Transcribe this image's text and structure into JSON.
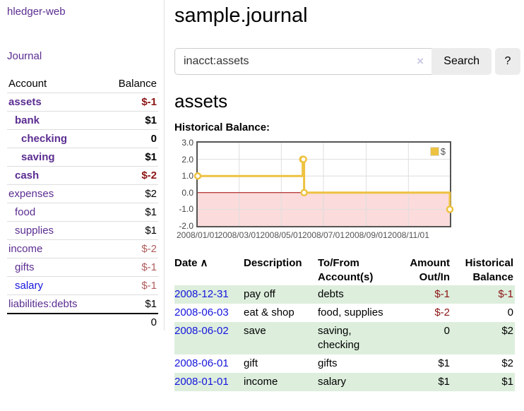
{
  "app": {
    "brand": "hledger-web"
  },
  "sidebar": {
    "journal_link": "Journal",
    "columns": {
      "account": "Account",
      "balance": "Balance"
    },
    "accounts": [
      {
        "name": "assets",
        "level": 1,
        "balance": "$-1",
        "bold": true,
        "balance_style": "neg-strong",
        "link_style": "purple"
      },
      {
        "name": "bank",
        "level": 2,
        "balance": "$1",
        "bold": true,
        "balance_style": "normal",
        "link_style": "purple"
      },
      {
        "name": "checking",
        "level": 3,
        "balance": "0",
        "bold": true,
        "balance_style": "normal",
        "link_style": "purple"
      },
      {
        "name": "saving",
        "level": 3,
        "balance": "$1",
        "bold": true,
        "balance_style": "normal",
        "link_style": "purple"
      },
      {
        "name": "cash",
        "level": 2,
        "balance": "$-2",
        "bold": true,
        "balance_style": "neg-strong",
        "link_style": "purple"
      },
      {
        "name": "expenses",
        "level": 1,
        "balance": "$2",
        "bold": false,
        "balance_style": "normal",
        "link_style": "purple"
      },
      {
        "name": "food",
        "level": 2,
        "balance": "$1",
        "bold": false,
        "balance_style": "normal",
        "link_style": "purple"
      },
      {
        "name": "supplies",
        "level": 2,
        "balance": "$1",
        "bold": false,
        "balance_style": "normal",
        "link_style": "purple"
      },
      {
        "name": "income",
        "level": 1,
        "balance": "$-2",
        "bold": false,
        "balance_style": "neg-soft",
        "link_style": "purple"
      },
      {
        "name": "gifts",
        "level": 2,
        "balance": "$-1",
        "bold": false,
        "balance_style": "neg-soft",
        "link_style": "purple"
      },
      {
        "name": "salary",
        "level": 2,
        "balance": "$-1",
        "bold": false,
        "balance_style": "neg-soft",
        "link_style": "blue"
      },
      {
        "name": "liabilities:debts",
        "level": 1,
        "balance": "$1",
        "bold": false,
        "balance_style": "normal",
        "link_style": "purple"
      }
    ],
    "total": "0"
  },
  "main": {
    "title": "sample.journal",
    "search": {
      "value": "inacct:assets",
      "clear_icon": "×",
      "search_label": "Search",
      "help_label": "?"
    },
    "account_heading": "assets",
    "register": {
      "columns": [
        {
          "label": "Date",
          "sort_icon": "∧",
          "align": "left",
          "sortable": true
        },
        {
          "label": "Description",
          "align": "left"
        },
        {
          "label": "To/From Account(s)",
          "align": "left"
        },
        {
          "label": "Amount Out/In",
          "align": "right"
        },
        {
          "label": "Historical Balance",
          "align": "right"
        }
      ],
      "rows": [
        {
          "date": "2008-12-31",
          "description": "pay off",
          "accounts": "debts",
          "amount": "$-1",
          "amount_style": "neg-strong",
          "balance": "$-1",
          "balance_style": "neg-strong"
        },
        {
          "date": "2008-06-03",
          "description": "eat & shop",
          "accounts": "food, supplies",
          "amount": "$-2",
          "amount_style": "neg-strong",
          "balance": "0",
          "balance_style": "normal"
        },
        {
          "date": "2008-06-02",
          "description": "save",
          "accounts": "saving, checking",
          "amount": "0",
          "amount_style": "normal",
          "balance": "$2",
          "balance_style": "normal"
        },
        {
          "date": "2008-06-01",
          "description": "gift",
          "accounts": "gifts",
          "amount": "$1",
          "amount_style": "normal",
          "balance": "$2",
          "balance_style": "normal"
        },
        {
          "date": "2008-01-01",
          "description": "income",
          "accounts": "salary",
          "amount": "$1",
          "amount_style": "normal",
          "balance": "$1",
          "balance_style": "normal"
        }
      ]
    }
  },
  "chart_data": {
    "type": "line",
    "step": true,
    "title": "Historical Balance:",
    "x_domain": [
      "2008-01-01",
      "2008-12-31"
    ],
    "ylim": [
      -2,
      3
    ],
    "x_ticks": [
      "2008/01/01",
      "2008/03/01",
      "2008/05/01",
      "2008/07/01",
      "2008/09/01",
      "2008/11/01"
    ],
    "y_ticks": [
      "3.0",
      "2.0",
      "1.0",
      "0.0",
      "-1.0",
      "-2.0"
    ],
    "series": [
      {
        "name": "$",
        "points": [
          [
            "2008-01-01",
            1
          ],
          [
            "2008-06-01",
            2
          ],
          [
            "2008-06-02",
            2
          ],
          [
            "2008-06-03",
            0
          ],
          [
            "2008-12-31",
            -1
          ]
        ]
      }
    ],
    "legend": {
      "label": "$",
      "position": "top-right"
    },
    "colors": {
      "line": "#edc240",
      "marker_fill": "#ffffff",
      "negative_fill": "#fbdbdb",
      "zero_line": "#a00000",
      "grid": "#dedede",
      "border": "#545454"
    }
  },
  "colors": {
    "purple_link": "#5b2d91",
    "blue_link": "#1515dd",
    "neg_strong": "#8b1414",
    "neg_soft": "#b05c5c",
    "row_green": "#ddeedd"
  }
}
